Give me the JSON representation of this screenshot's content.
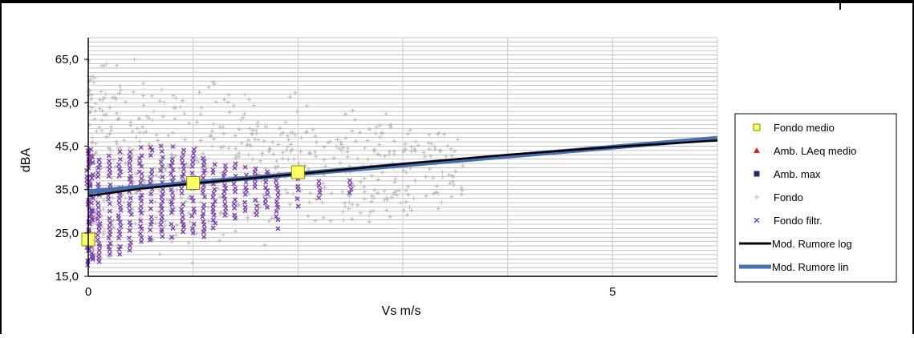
{
  "colors": {
    "fondo_medio": "#ffff66",
    "amb_laeq": "#e02020",
    "amb_max": "#1f2f66",
    "fondo": "#b8b8b8",
    "fondo_filtr": "#7b3ab0",
    "mod_log": "#000000",
    "mod_lin": "#4a6fb0",
    "grid_h": "#b5b5b5",
    "grid_v": "#c8c8e8"
  },
  "chart_data": {
    "type": "scatter",
    "title": "",
    "xlabel": "Vs m/s",
    "ylabel": "dBA",
    "xlim": [
      0,
      6
    ],
    "ylim": [
      15,
      70
    ],
    "x_ticks": [
      {
        "value": 0,
        "label": "0"
      },
      {
        "value": 5,
        "label": "5"
      }
    ],
    "y_ticks": [
      {
        "value": 15,
        "label": "15,0"
      },
      {
        "value": 25,
        "label": "25,0"
      },
      {
        "value": 35,
        "label": "35,0"
      },
      {
        "value": 45,
        "label": "45,0"
      },
      {
        "value": 55,
        "label": "55,0"
      },
      {
        "value": 65,
        "label": "65,0"
      }
    ],
    "grid": {
      "horizontal_step": 1,
      "vertical_step": 1
    },
    "legend_position": "right",
    "legend": [
      {
        "key": "fondo_medio",
        "label": "Fondo medio"
      },
      {
        "key": "amb_laeq",
        "label": "Amb. LAeq medio"
      },
      {
        "key": "amb_max",
        "label": "Amb. max"
      },
      {
        "key": "fondo",
        "label": "Fondo"
      },
      {
        "key": "fondo_filtr",
        "label": "Fondo filtr."
      },
      {
        "key": "mod_log",
        "label": "Mod. Rumore log"
      },
      {
        "key": "mod_lin",
        "label": "Mod. Rumore lin"
      }
    ],
    "series": {
      "fondo_medio": {
        "x": [
          0,
          1,
          2
        ],
        "y": [
          23.5,
          36.5,
          39
        ]
      },
      "mod_log": {
        "x": [
          0,
          0.5,
          1,
          1.5,
          2,
          3,
          4,
          5,
          6
        ],
        "y": [
          33.5,
          35.2,
          36.4,
          37.5,
          38.6,
          40.9,
          43.0,
          44.8,
          46.3
        ]
      },
      "mod_lin": {
        "x": [
          0,
          6
        ],
        "y": [
          34.5,
          46.8
        ]
      },
      "fondo_filtr": {
        "x_columns": [
          0,
          0.1,
          0.2,
          0.3,
          0.4,
          0.5,
          0.6,
          0.7,
          0.8,
          0.9,
          1.0,
          1.1,
          1.2,
          1.3,
          1.4,
          1.5,
          1.6,
          1.7,
          1.8,
          2.0,
          2.2,
          2.5
        ],
        "y_min": [
          17,
          18,
          19,
          20,
          21,
          22,
          23,
          24,
          24,
          25,
          25,
          24,
          26,
          27,
          28,
          30,
          29,
          30,
          26,
          31,
          33,
          34
        ],
        "y_max": [
          44,
          43,
          43,
          44,
          44,
          45,
          45,
          45,
          45,
          44,
          44,
          42,
          42,
          41,
          41,
          40,
          40,
          39,
          38,
          38,
          37,
          37
        ]
      },
      "fondo": {
        "x_range": [
          0,
          3.6
        ],
        "y_range": [
          18,
          69
        ]
      }
    }
  }
}
